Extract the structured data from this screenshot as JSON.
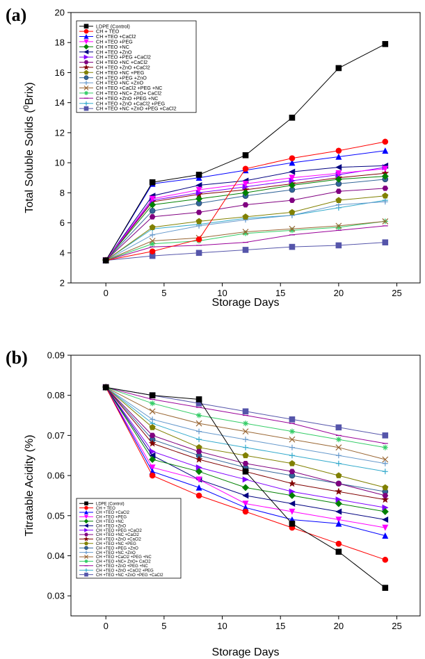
{
  "series_meta": [
    {
      "name": "LDPE (Control)",
      "color": "#000000",
      "marker": "square"
    },
    {
      "name": "CH + TEO",
      "color": "#FF0000",
      "marker": "circle"
    },
    {
      "name": "CH +TEO +CaCl2",
      "color": "#0000FF",
      "marker": "triangle-up"
    },
    {
      "name": "CH +TEO +PEG",
      "color": "#FF00FF",
      "marker": "triangle-down"
    },
    {
      "name": "CH +TEO +NC",
      "color": "#008000",
      "marker": "diamond"
    },
    {
      "name": "CH +TEO +ZnO",
      "color": "#000080",
      "marker": "triangle-left"
    },
    {
      "name": "CH +TEO +PEG +CaCl2",
      "color": "#8000FF",
      "marker": "triangle-right"
    },
    {
      "name": "CH +TEO +NC +CaCl2",
      "color": "#800080",
      "marker": "hexagon"
    },
    {
      "name": "CH +TEO +ZnO +CaCl2",
      "color": "#800000",
      "marker": "star"
    },
    {
      "name": "CH +TEO +NC +PEG",
      "color": "#808000",
      "marker": "pentagon"
    },
    {
      "name": "CH +TEO +PEG +ZnO",
      "color": "#336699",
      "marker": "sphere"
    },
    {
      "name": "CH +TEO +NC +ZnO",
      "color": "#6699CC",
      "marker": "plus"
    },
    {
      "name": "CH +TEO +CaCl2 +PEG +NC",
      "color": "#996633",
      "marker": "x"
    },
    {
      "name": "CH +TEO +NC+ ZnO+ CaCl2",
      "color": "#33CC66",
      "marker": "asterisk"
    },
    {
      "name": "CH +TEO +ZnO +PEG +NC",
      "color": "#990099",
      "marker": "dash"
    },
    {
      "name": "CH +TEO +ZnO +CaCl2 +PEG",
      "color": "#33AACC",
      "marker": "plus"
    },
    {
      "name": "CH +TEO +NC +ZnO +PEG +CaCl2",
      "color": "#5555AA",
      "marker": "square"
    }
  ],
  "chart_data": [
    {
      "type": "line",
      "panel_label": "(a)",
      "xlabel": "Storage Days",
      "ylabel_main": "Total Soluble Solids (",
      "ylabel_sup": "0",
      "ylabel_end": "Brix)",
      "x": [
        0,
        4,
        8,
        12,
        16,
        20,
        24
      ],
      "xlim": [
        -3,
        27
      ],
      "xticks": [
        0,
        5,
        10,
        15,
        20,
        25
      ],
      "ylim": [
        2,
        20
      ],
      "yticks": [
        2,
        4,
        6,
        8,
        10,
        12,
        14,
        16,
        18,
        20
      ],
      "ytick_labels": [
        "2",
        "4",
        "6",
        "8",
        "10",
        "12",
        "14",
        "16",
        "18",
        "20"
      ],
      "legend_position": "top-left",
      "series": [
        {
          "name": "LDPE (Control)",
          "values": [
            3.5,
            8.7,
            9.2,
            10.5,
            13.0,
            16.3,
            17.9
          ]
        },
        {
          "name": "CH + TEO",
          "values": [
            3.5,
            4.1,
            4.9,
            9.6,
            10.3,
            10.8,
            11.4
          ]
        },
        {
          "name": "CH +TEO +CaCl2",
          "values": [
            3.5,
            8.6,
            9.0,
            9.5,
            10.0,
            10.4,
            10.8
          ]
        },
        {
          "name": "CH +TEO +PEG",
          "values": [
            3.5,
            7.6,
            8.2,
            8.6,
            9.0,
            9.3,
            9.6
          ]
        },
        {
          "name": "CH +TEO +NC",
          "values": [
            3.5,
            7.2,
            7.6,
            8.0,
            8.5,
            8.9,
            9.1
          ]
        },
        {
          "name": "CH +TEO +ZnO",
          "values": [
            3.5,
            7.8,
            8.5,
            8.8,
            9.4,
            9.7,
            9.8
          ]
        },
        {
          "name": "CH +TEO +PEG +CaCl2",
          "values": [
            3.5,
            7.5,
            8.0,
            8.4,
            8.8,
            9.2,
            9.7
          ]
        },
        {
          "name": "CH +TEO +NC +CaCl2",
          "values": [
            3.5,
            6.4,
            6.7,
            7.2,
            7.5,
            8.1,
            8.3
          ]
        },
        {
          "name": "CH +TEO +ZnO +CaCl2",
          "values": [
            3.5,
            7.4,
            7.9,
            8.2,
            8.6,
            9.0,
            9.3
          ]
        },
        {
          "name": "CH +TEO +NC +PEG",
          "values": [
            3.5,
            5.7,
            6.1,
            6.4,
            6.7,
            7.5,
            7.8
          ]
        },
        {
          "name": "CH +TEO +PEG +ZnO",
          "values": [
            3.5,
            6.8,
            7.3,
            7.8,
            8.2,
            8.6,
            8.9
          ]
        },
        {
          "name": "CH +TEO +NC +ZnO",
          "values": [
            3.5,
            5.2,
            5.8,
            6.2,
            6.5,
            7.2,
            7.4
          ]
        },
        {
          "name": "CH +TEO +CaCl2 +PEG +NC",
          "values": [
            3.5,
            4.8,
            5.0,
            5.4,
            5.6,
            5.8,
            6.1
          ]
        },
        {
          "name": "CH +TEO +NC+ ZnO+ CaCl2",
          "values": [
            3.5,
            4.6,
            4.8,
            5.3,
            5.5,
            5.7,
            6.1
          ]
        },
        {
          "name": "CH +TEO +ZnO +PEG +NC",
          "values": [
            3.5,
            4.4,
            4.5,
            4.7,
            5.2,
            5.5,
            5.8
          ]
        },
        {
          "name": "CH +TEO +ZnO +CaCl2 +PEG",
          "values": [
            3.5,
            5.6,
            5.9,
            6.3,
            6.5,
            7.0,
            7.5
          ]
        },
        {
          "name": "CH +TEO +NC +ZnO +PEG +CaCl2",
          "values": [
            3.5,
            3.8,
            4.0,
            4.2,
            4.4,
            4.5,
            4.7
          ]
        }
      ]
    },
    {
      "type": "line",
      "panel_label": "(b)",
      "xlabel": "Storage Days",
      "ylabel_main": "Titratable Acidity (%)",
      "x": [
        0,
        4,
        8,
        12,
        16,
        20,
        24
      ],
      "xlim": [
        -3,
        27
      ],
      "xticks": [
        0,
        5,
        10,
        15,
        20,
        25
      ],
      "ylim": [
        0.025,
        0.09
      ],
      "yticks": [
        0.03,
        0.04,
        0.05,
        0.06,
        0.07,
        0.08,
        0.09
      ],
      "ytick_labels": [
        "0.03",
        "0.04",
        "0.05",
        "0.06",
        "0.07",
        "0.08",
        "0.09"
      ],
      "legend_position": "bottom-left",
      "series": [
        {
          "name": "LDPE (Control)",
          "values": [
            0.082,
            0.08,
            0.079,
            0.061,
            0.048,
            0.041,
            0.032
          ]
        },
        {
          "name": "CH + TEO",
          "values": [
            0.082,
            0.06,
            0.055,
            0.051,
            0.047,
            0.043,
            0.039
          ]
        },
        {
          "name": "CH +TEO +CaCl2",
          "values": [
            0.082,
            0.061,
            0.057,
            0.052,
            0.049,
            0.048,
            0.045
          ]
        },
        {
          "name": "CH +TEO +PEG",
          "values": [
            0.082,
            0.062,
            0.059,
            0.053,
            0.051,
            0.049,
            0.047
          ]
        },
        {
          "name": "CH +TEO +NC",
          "values": [
            0.082,
            0.064,
            0.061,
            0.057,
            0.055,
            0.053,
            0.051
          ]
        },
        {
          "name": "CH +TEO +ZnO",
          "values": [
            0.082,
            0.065,
            0.059,
            0.055,
            0.053,
            0.051,
            0.049
          ]
        },
        {
          "name": "CH +TEO +PEG +CaCl2",
          "values": [
            0.082,
            0.066,
            0.062,
            0.059,
            0.056,
            0.054,
            0.052
          ]
        },
        {
          "name": "CH +TEO +NC +CaCl2",
          "values": [
            0.082,
            0.07,
            0.066,
            0.063,
            0.061,
            0.058,
            0.055
          ]
        },
        {
          "name": "CH +TEO +ZnO +CaCl2",
          "values": [
            0.082,
            0.068,
            0.064,
            0.061,
            0.058,
            0.056,
            0.054
          ]
        },
        {
          "name": "CH +TEO +NC +PEG",
          "values": [
            0.082,
            0.072,
            0.067,
            0.065,
            0.063,
            0.06,
            0.057
          ]
        },
        {
          "name": "CH +TEO +PEG +ZnO",
          "values": [
            0.082,
            0.069,
            0.065,
            0.062,
            0.06,
            0.058,
            0.056
          ]
        },
        {
          "name": "CH +TEO +NC +ZnO",
          "values": [
            0.082,
            0.074,
            0.071,
            0.069,
            0.067,
            0.065,
            0.063
          ]
        },
        {
          "name": "CH +TEO +CaCl2 +PEG +NC",
          "values": [
            0.082,
            0.076,
            0.073,
            0.071,
            0.069,
            0.067,
            0.064
          ]
        },
        {
          "name": "CH +TEO +NC+ ZnO+ CaCl2",
          "values": [
            0.082,
            0.078,
            0.075,
            0.073,
            0.071,
            0.069,
            0.067
          ]
        },
        {
          "name": "CH +TEO +ZnO +PEG +NC",
          "values": [
            0.082,
            0.079,
            0.077,
            0.075,
            0.073,
            0.07,
            0.068
          ]
        },
        {
          "name": "CH +TEO +ZnO +CaCl2 +PEG",
          "values": [
            0.082,
            0.073,
            0.069,
            0.067,
            0.065,
            0.063,
            0.061
          ]
        },
        {
          "name": "CH +TEO +NC +ZnO +PEG +CaCl2",
          "values": [
            0.082,
            0.08,
            0.078,
            0.076,
            0.074,
            0.072,
            0.07
          ]
        }
      ]
    }
  ]
}
